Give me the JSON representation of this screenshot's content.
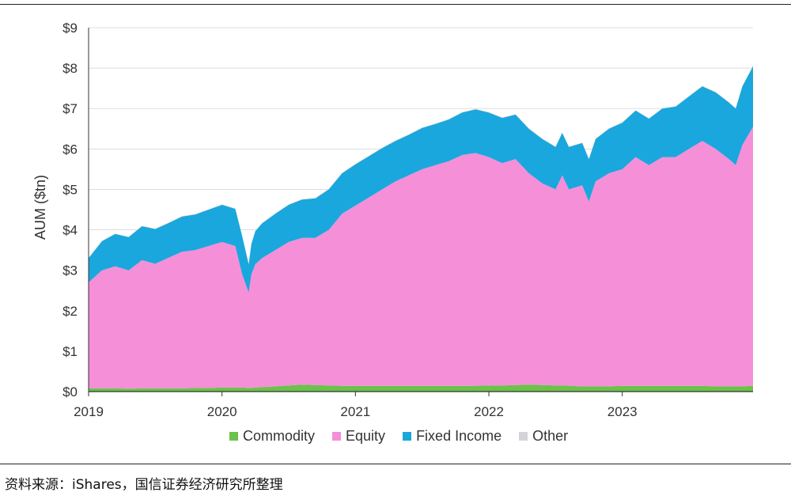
{
  "chart_data": {
    "type": "area",
    "stacked": true,
    "ylabel": "AUM ($tn)",
    "ylim": [
      0,
      9
    ],
    "yticks": [
      "$0",
      "$1",
      "$2",
      "$3",
      "$4",
      "$5",
      "$6",
      "$7",
      "$8",
      "$9"
    ],
    "xlim": [
      2019.0,
      2023.98
    ],
    "xticks": [
      "2019",
      "2020",
      "2021",
      "2022",
      "2023"
    ],
    "grid": "horizontal",
    "legend_position": "bottom",
    "x": [
      2019.0,
      2019.1,
      2019.2,
      2019.3,
      2019.4,
      2019.5,
      2019.6,
      2019.7,
      2019.8,
      2019.9,
      2020.0,
      2020.1,
      2020.15,
      2020.2,
      2020.22,
      2020.25,
      2020.3,
      2020.4,
      2020.5,
      2020.6,
      2020.7,
      2020.8,
      2020.9,
      2021.0,
      2021.1,
      2021.2,
      2021.3,
      2021.4,
      2021.5,
      2021.6,
      2021.7,
      2021.8,
      2021.9,
      2022.0,
      2022.1,
      2022.2,
      2022.3,
      2022.4,
      2022.5,
      2022.55,
      2022.6,
      2022.7,
      2022.75,
      2022.8,
      2022.9,
      2023.0,
      2023.1,
      2023.2,
      2023.3,
      2023.4,
      2023.5,
      2023.6,
      2023.7,
      2023.8,
      2023.85,
      2023.9,
      2023.98
    ],
    "series": [
      {
        "name": "Commodity",
        "color": "#6cc24a",
        "values": [
          0.08,
          0.08,
          0.08,
          0.07,
          0.08,
          0.08,
          0.08,
          0.08,
          0.09,
          0.09,
          0.1,
          0.1,
          0.1,
          0.09,
          0.09,
          0.1,
          0.11,
          0.13,
          0.15,
          0.17,
          0.16,
          0.15,
          0.14,
          0.14,
          0.14,
          0.14,
          0.14,
          0.14,
          0.14,
          0.14,
          0.14,
          0.14,
          0.14,
          0.15,
          0.15,
          0.16,
          0.17,
          0.16,
          0.15,
          0.15,
          0.14,
          0.13,
          0.13,
          0.13,
          0.13,
          0.14,
          0.14,
          0.14,
          0.14,
          0.14,
          0.14,
          0.14,
          0.13,
          0.13,
          0.13,
          0.13,
          0.14
        ]
      },
      {
        "name": "Equity",
        "color": "#f48fd8",
        "values": [
          2.62,
          2.92,
          3.02,
          2.93,
          3.17,
          3.08,
          3.23,
          3.38,
          3.41,
          3.51,
          3.6,
          3.5,
          2.81,
          2.36,
          2.81,
          3.05,
          3.19,
          3.37,
          3.55,
          3.63,
          3.64,
          3.85,
          4.26,
          4.46,
          4.66,
          4.86,
          5.06,
          5.21,
          5.36,
          5.46,
          5.56,
          5.71,
          5.76,
          5.65,
          5.5,
          5.59,
          5.23,
          4.99,
          4.85,
          5.2,
          4.86,
          4.97,
          4.57,
          5.07,
          5.27,
          5.36,
          5.66,
          5.46,
          5.66,
          5.66,
          5.86,
          6.06,
          5.87,
          5.62,
          5.47,
          5.97,
          6.41
        ]
      },
      {
        "name": "Fixed Income",
        "color": "#1aa7dd",
        "values": [
          0.6,
          0.72,
          0.8,
          0.82,
          0.84,
          0.86,
          0.86,
          0.87,
          0.88,
          0.9,
          0.92,
          0.92,
          0.95,
          0.7,
          0.75,
          0.82,
          0.86,
          0.9,
          0.92,
          0.95,
          0.98,
          1.0,
          1.0,
          1.02,
          1.02,
          1.02,
          1.0,
          1.0,
          1.02,
          1.02,
          1.03,
          1.05,
          1.08,
          1.1,
          1.12,
          1.1,
          1.1,
          1.1,
          1.05,
          1.05,
          1.05,
          1.05,
          1.05,
          1.05,
          1.1,
          1.15,
          1.15,
          1.15,
          1.2,
          1.25,
          1.3,
          1.35,
          1.4,
          1.4,
          1.4,
          1.45,
          1.5
        ]
      },
      {
        "name": "Other",
        "color": "#d3d3d8",
        "values": [
          0.01,
          0.01,
          0.01,
          0.01,
          0.01,
          0.01,
          0.01,
          0.01,
          0.01,
          0.01,
          0.01,
          0.01,
          0.01,
          0.01,
          0.01,
          0.01,
          0.01,
          0.01,
          0.01,
          0.01,
          0.01,
          0.01,
          0.01,
          0.01,
          0.01,
          0.01,
          0.01,
          0.01,
          0.01,
          0.01,
          0.01,
          0.01,
          0.01,
          0.01,
          0.01,
          0.01,
          0.01,
          0.01,
          0.01,
          0.01,
          0.01,
          0.01,
          0.01,
          0.01,
          0.01,
          0.01,
          0.01,
          0.01,
          0.01,
          0.01,
          0.01,
          0.01,
          0.01,
          0.01,
          0.01,
          0.01,
          0.01
        ]
      }
    ]
  },
  "legend": {
    "items": [
      {
        "label": "Commodity",
        "color": "#6cc24a"
      },
      {
        "label": "Equity",
        "color": "#f48fd8"
      },
      {
        "label": "Fixed Income",
        "color": "#1aa7dd"
      },
      {
        "label": "Other",
        "color": "#d3d3d8"
      }
    ]
  },
  "source_note": "资料来源：iShares，国信证券经济研究所整理"
}
